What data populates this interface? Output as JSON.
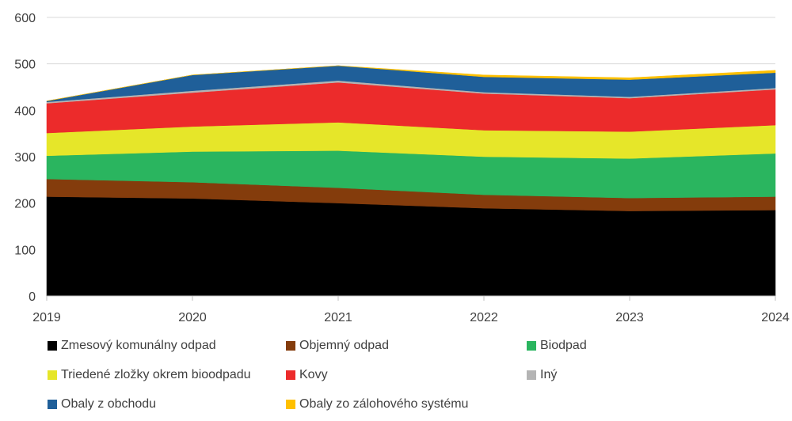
{
  "chart_data": {
    "type": "area",
    "stacked": true,
    "title": "",
    "xlabel": "",
    "ylabel": "",
    "ylim": [
      0,
      600
    ],
    "yticks": [
      0,
      100,
      200,
      300,
      400,
      500,
      600
    ],
    "grid": "horizontal",
    "legend_position": "bottom",
    "x": [
      "2019",
      "2020",
      "2021",
      "2022",
      "2023",
      "2024"
    ],
    "series": [
      {
        "name": "Zmesový komunálny odpad",
        "color": "#000000",
        "values": [
          214,
          210,
          200,
          189,
          183,
          185
        ]
      },
      {
        "name": "Objemný odpad",
        "color": "#843c0c",
        "values": [
          38,
          35,
          33,
          29,
          28,
          29
        ]
      },
      {
        "name": "Biodpad",
        "color": "#2ab55f",
        "values": [
          50,
          66,
          80,
          82,
          85,
          93
        ]
      },
      {
        "name": "Triedené zložky okrem bioodpadu",
        "color": "#e6e629",
        "values": [
          49,
          54,
          61,
          57,
          58,
          61
        ]
      },
      {
        "name": "Kovy",
        "color": "#ec2b2b",
        "values": [
          64,
          73,
          86,
          79,
          72,
          77
        ]
      },
      {
        "name": "Iný",
        "color": "#b4b4b4",
        "values": [
          3,
          4,
          4,
          3,
          3,
          3
        ]
      },
      {
        "name": "Obaly z obchodu",
        "color": "#1f5f99",
        "values": [
          2,
          34,
          32,
          33,
          37,
          33
        ]
      },
      {
        "name": "Obaly zo zálohového systému",
        "color": "#ffc000",
        "values": [
          0,
          0,
          0,
          4,
          4,
          5
        ]
      }
    ]
  }
}
